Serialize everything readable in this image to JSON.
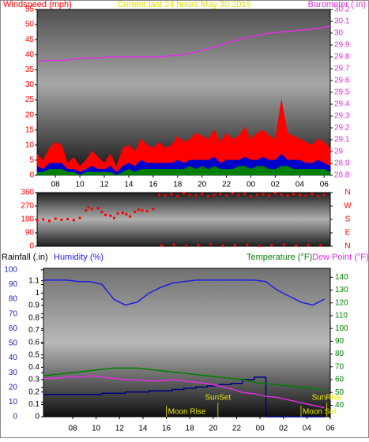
{
  "chart_data": [
    {
      "type": "line",
      "title": "Current last 24 hours May 30 2015",
      "ylabel": "Windspeed (mph)",
      "y2label": "Barometer (.in)",
      "xlim": [
        0,
        24
      ],
      "xticks": [
        {
          "value": 1.5,
          "label": "08"
        },
        {
          "value": 3.5,
          "label": "10"
        },
        {
          "value": 5.5,
          "label": "12"
        },
        {
          "value": 7.5,
          "label": "14"
        },
        {
          "value": 9.5,
          "label": "16"
        },
        {
          "value": 11.5,
          "label": "18"
        },
        {
          "value": 13.5,
          "label": "20"
        },
        {
          "value": 15.5,
          "label": "22"
        },
        {
          "value": 17.5,
          "label": "00"
        },
        {
          "value": 19.5,
          "label": "02"
        },
        {
          "value": 21.5,
          "label": "04"
        },
        {
          "value": 23.5,
          "label": "06"
        }
      ],
      "ylim": [
        0,
        55
      ],
      "yticks": [
        0,
        5,
        10,
        15,
        20,
        25,
        30,
        35,
        40,
        45,
        50,
        55
      ],
      "y2lim": [
        28.8,
        30.2
      ],
      "y2ticks": [
        28.8,
        28.9,
        29,
        29.1,
        29.2,
        29.3,
        29.4,
        29.5,
        29.6,
        29.7,
        29.8,
        29.9,
        30,
        30.1,
        30.2
      ],
      "series": [
        {
          "color": "#ff0000",
          "fill": true,
          "x": [
            0,
            0.5,
            1,
            1.5,
            2,
            2.5,
            3,
            3.5,
            4,
            4.5,
            5,
            5.5,
            6,
            6.5,
            7,
            7.5,
            8,
            8.5,
            9,
            9.5,
            10,
            10.5,
            11,
            11.5,
            12,
            12.5,
            13,
            13.5,
            14,
            14.5,
            15,
            15.5,
            16,
            16.5,
            17,
            17.5,
            18,
            18.5,
            19,
            19.5,
            20,
            20.5,
            21,
            21.5,
            22,
            22.5,
            23,
            23.5,
            24
          ],
          "values": [
            7,
            5,
            9,
            11,
            10,
            4,
            6,
            3,
            5,
            8,
            6,
            4,
            7,
            3,
            9,
            10,
            8,
            12,
            10,
            9,
            11,
            9,
            10,
            13,
            11,
            12,
            14,
            13,
            12,
            15,
            11,
            14,
            12,
            13,
            16,
            12,
            14,
            15,
            13,
            12,
            25,
            14,
            13,
            12,
            11,
            10,
            12,
            11,
            9
          ]
        },
        {
          "color": "#0000cc",
          "fill": true,
          "x": [
            0,
            0.5,
            1,
            1.5,
            2,
            2.5,
            3,
            3.5,
            4,
            4.5,
            5,
            5.5,
            6,
            6.5,
            7,
            7.5,
            8,
            8.5,
            9,
            9.5,
            10,
            10.5,
            11,
            11.5,
            12,
            12.5,
            13,
            13.5,
            14,
            14.5,
            15,
            15.5,
            16,
            16.5,
            17,
            17.5,
            18,
            18.5,
            19,
            19.5,
            20,
            20.5,
            21,
            21.5,
            22,
            22.5,
            23,
            23.5,
            24
          ],
          "values": [
            3,
            2,
            4,
            4,
            4,
            2,
            2,
            1,
            2,
            3,
            2,
            2,
            3,
            1,
            3,
            4,
            3,
            5,
            4,
            4,
            4,
            4,
            4,
            5,
            4,
            5,
            5,
            5,
            5,
            6,
            4,
            5,
            5,
            5,
            6,
            5,
            5,
            6,
            5,
            5,
            7,
            5,
            5,
            5,
            4,
            4,
            5,
            4,
            3
          ]
        },
        {
          "color": "#008000",
          "fill": true,
          "x": [
            0,
            0.5,
            1,
            1.5,
            2,
            2.5,
            3,
            3.5,
            4,
            4.5,
            5,
            5.5,
            6,
            6.5,
            7,
            7.5,
            8,
            8.5,
            9,
            9.5,
            10,
            10.5,
            11,
            11.5,
            12,
            12.5,
            13,
            13.5,
            14,
            14.5,
            15,
            15.5,
            16,
            16.5,
            17,
            17.5,
            18,
            18.5,
            19,
            19.5,
            20,
            20.5,
            21,
            21.5,
            22,
            22.5,
            23,
            23.5,
            24
          ],
          "values": [
            1,
            1,
            2,
            2,
            2,
            1,
            1,
            0,
            1,
            1,
            1,
            1,
            1,
            0,
            1,
            2,
            1,
            2,
            2,
            2,
            2,
            2,
            2,
            2,
            2,
            3,
            2,
            3,
            2,
            3,
            2,
            2,
            2,
            3,
            3,
            2,
            3,
            3,
            2,
            2,
            3,
            3,
            2,
            2,
            2,
            2,
            2,
            2,
            1
          ]
        },
        {
          "color": "#e030e0",
          "axis": "y2",
          "x": [
            0,
            1,
            2,
            3,
            4,
            5,
            6,
            7,
            8,
            9,
            10,
            11,
            12,
            13,
            14,
            15,
            16,
            17,
            18,
            19,
            20,
            21,
            22,
            23,
            24
          ],
          "values": [
            29.76,
            29.77,
            29.77,
            29.78,
            29.79,
            29.79,
            29.8,
            29.8,
            29.8,
            29.8,
            29.8,
            29.81,
            29.82,
            29.84,
            29.87,
            29.9,
            29.93,
            29.96,
            29.98,
            30,
            30.01,
            30.02,
            30.03,
            30.04,
            30.06
          ]
        }
      ]
    },
    {
      "type": "scatter",
      "xlim": [
        0,
        24
      ],
      "ylim": [
        0,
        360
      ],
      "yticks": [
        0,
        90,
        180,
        270,
        360
      ],
      "y2lim": [
        0,
        360
      ],
      "y2ticks": [
        {
          "value": 360,
          "label": "N"
        },
        {
          "value": 270,
          "label": "W"
        },
        {
          "value": 180,
          "label": "S"
        },
        {
          "value": 90,
          "label": "E"
        },
        {
          "value": 0,
          "label": "N"
        }
      ],
      "color": "#ff0000",
      "x": [
        0,
        0.5,
        1,
        1.5,
        2,
        2.5,
        3,
        3.5,
        4,
        4.2,
        4.5,
        5,
        5.3,
        5.6,
        6,
        6.3,
        6.6,
        7,
        7.3,
        7.6,
        8,
        8.3,
        8.6,
        9,
        9.5,
        10,
        10.5,
        11,
        11.5,
        12,
        12.5,
        13,
        13.5,
        14,
        14.5,
        15,
        15.5,
        16,
        16.5,
        17,
        17.5,
        18,
        18.5,
        19,
        19.5,
        20,
        20.5,
        21,
        21.5,
        22,
        22.5,
        23,
        23.5,
        10.2,
        11.2,
        12.2,
        13.2,
        14.2,
        15.2,
        16.2,
        17.2,
        18.2,
        19.2,
        20.2,
        21.2,
        22.2,
        23.2
      ],
      "values": [
        175,
        180,
        170,
        185,
        178,
        182,
        176,
        190,
        240,
        260,
        250,
        255,
        230,
        210,
        205,
        190,
        220,
        225,
        215,
        200,
        230,
        245,
        240,
        235,
        250,
        345,
        340,
        350,
        335,
        355,
        345,
        340,
        350,
        335,
        345,
        350,
        340,
        355,
        345,
        350,
        335,
        345,
        350,
        340,
        355,
        345,
        340,
        350,
        345,
        340,
        350,
        335,
        345,
        5,
        10,
        3,
        8,
        12,
        4,
        6,
        9,
        2,
        7,
        11,
        5,
        8,
        4
      ]
    },
    {
      "type": "line",
      "xlim": [
        0,
        24.5
      ],
      "xticks": [
        {
          "value": 2.5,
          "label": "08"
        },
        {
          "value": 4.5,
          "label": "10"
        },
        {
          "value": 6.5,
          "label": "12"
        },
        {
          "value": 8.5,
          "label": "14"
        },
        {
          "value": 10.5,
          "label": "16"
        },
        {
          "value": 12.5,
          "label": "18"
        },
        {
          "value": 14.5,
          "label": "20"
        },
        {
          "value": 16.5,
          "label": "22"
        },
        {
          "value": 18.5,
          "label": "00"
        },
        {
          "value": 20.5,
          "label": "02"
        },
        {
          "value": 22.5,
          "label": "04"
        },
        {
          "value": 24.5,
          "label": "06"
        }
      ],
      "ylim": [
        0,
        1.2
      ],
      "yticks": [
        0,
        0.1,
        0.2,
        0.3,
        0.4,
        0.5,
        0.6,
        0.7,
        0.8,
        0.9,
        1,
        1.1
      ],
      "y3lim": [
        0,
        101
      ],
      "y3ticks": [
        0,
        10,
        20,
        30,
        40,
        50,
        60,
        70,
        80,
        90,
        100
      ],
      "y2lim": [
        31,
        147
      ],
      "y2ticks": [
        40,
        50,
        60,
        70,
        80,
        90,
        100,
        110,
        120,
        130,
        140
      ],
      "series": [
        {
          "name": "Rainfall (.in)",
          "color": "#000080",
          "axis": "y",
          "step": true,
          "x": [
            0,
            1,
            2,
            3,
            4,
            5,
            6,
            7,
            8,
            9,
            10,
            11,
            12,
            13,
            14,
            15,
            16,
            17,
            18,
            19,
            20,
            21,
            22,
            23,
            24
          ],
          "values": [
            0.18,
            0.18,
            0.18,
            0.18,
            0.18,
            0.19,
            0.19,
            0.2,
            0.2,
            0.21,
            0.21,
            0.22,
            0.23,
            0.24,
            0.25,
            0.26,
            0.27,
            0.3,
            0.32,
            0,
            0,
            0,
            0,
            0,
            0
          ]
        },
        {
          "name": "Humidity (%)",
          "color": "#2020e0",
          "axis": "y3",
          "x": [
            0,
            1,
            2,
            3,
            4,
            5,
            6,
            7,
            8,
            9,
            10,
            11,
            12,
            13,
            14,
            15,
            16,
            17,
            18,
            19,
            20,
            21,
            22,
            23,
            24
          ],
          "values": [
            93,
            93,
            93,
            92,
            92,
            90,
            80,
            76,
            78,
            84,
            88,
            91,
            92,
            93,
            93,
            93,
            93,
            93,
            93,
            92,
            86,
            82,
            78,
            76,
            80
          ]
        },
        {
          "name": "Temperature (°F)",
          "color": "#008000",
          "axis": "y2",
          "x": [
            0,
            1,
            2,
            3,
            4,
            5,
            6,
            7,
            8,
            9,
            10,
            11,
            12,
            13,
            14,
            15,
            16,
            17,
            18,
            19,
            20,
            21,
            22,
            23,
            24
          ],
          "values": [
            63,
            64,
            65,
            66,
            67,
            68,
            69,
            69,
            69,
            68,
            67,
            66,
            65,
            64,
            63,
            62,
            61,
            60,
            58,
            57,
            56,
            55,
            54,
            53,
            52
          ]
        },
        {
          "name": "Dew Point (°F)",
          "color": "#e030e0",
          "axis": "y2",
          "x": [
            0,
            1,
            2,
            3,
            4,
            5,
            6,
            7,
            8,
            9,
            10,
            11,
            12,
            13,
            14,
            15,
            16,
            17,
            18,
            19,
            20,
            21,
            22,
            23,
            24
          ],
          "values": [
            61,
            61,
            62,
            62,
            63,
            62,
            61,
            60,
            60,
            59,
            59,
            60,
            59,
            58,
            57,
            55,
            53,
            50,
            49,
            47,
            46,
            44,
            42,
            40,
            38
          ]
        }
      ],
      "annotations": [
        {
          "text": "Moon Rise",
          "x": 10.5
        },
        {
          "text": "SunSet",
          "x": 14.9
        },
        {
          "text": "Moon Set",
          "x": 22
        },
        {
          "text": "SunRise",
          "x": 24.2
        }
      ]
    }
  ]
}
